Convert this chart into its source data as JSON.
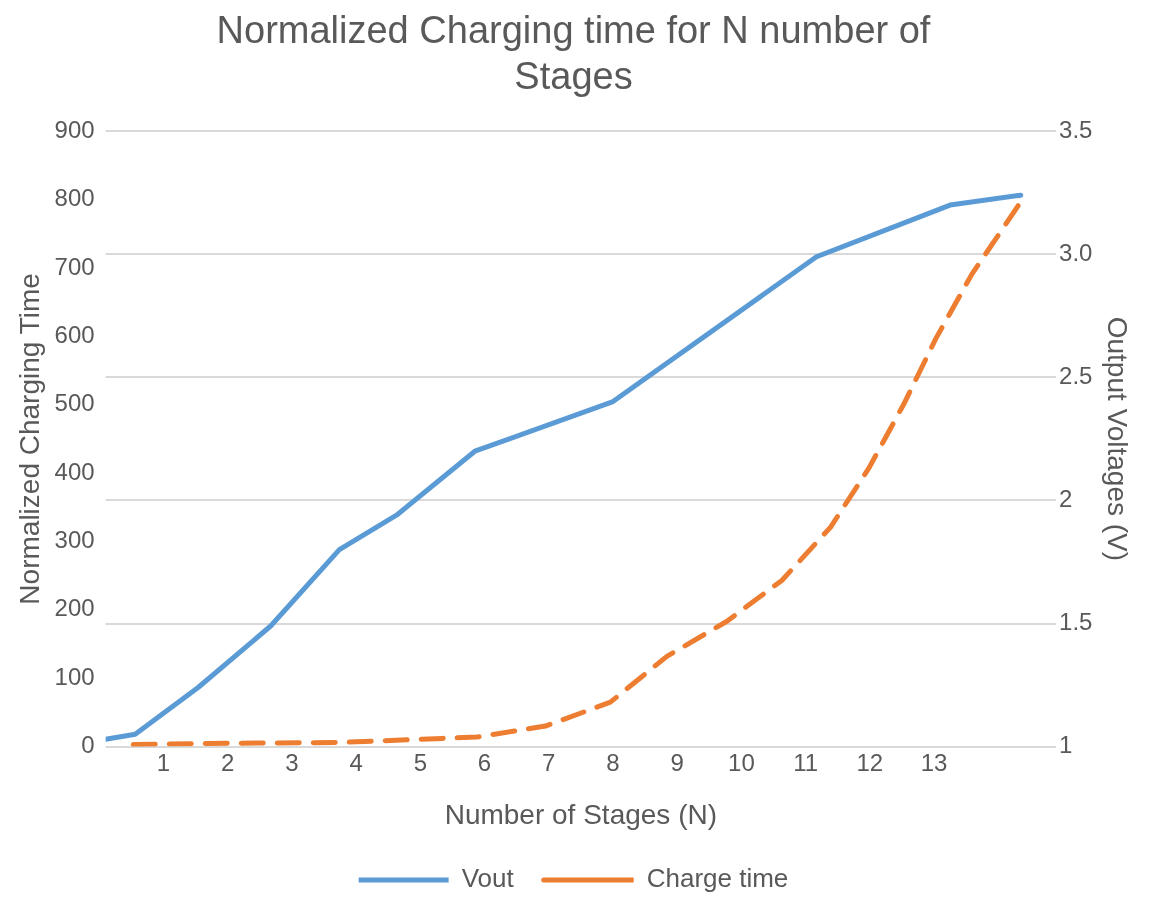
{
  "chart_data": {
    "type": "line",
    "title": "Normalized Charging time for N number of Stages",
    "xlabel": "Number of Stages (N)",
    "ylabel": "Normalized Charging Time",
    "y2label": "Output Voltages (V)",
    "xlim": [
      0.1,
      14.9
    ],
    "xticks": [
      1,
      2,
      3,
      4,
      5,
      6,
      7,
      8,
      9,
      10,
      11,
      12,
      13
    ],
    "ylim": [
      0,
      900
    ],
    "yticks": [
      0,
      100,
      200,
      300,
      400,
      500,
      600,
      700,
      800,
      900
    ],
    "y2lim": [
      1,
      3.5
    ],
    "y2ticks": [
      1,
      {
        "value": 1.5,
        "label": "1.5"
      },
      2,
      {
        "value": 2.5,
        "label": "2.5"
      },
      {
        "value": 3,
        "label": "3.0"
      },
      {
        "value": 3.5,
        "label": "3.5"
      }
    ],
    "grid": "y",
    "legend": "bottom",
    "marker": "none",
    "series": [
      {
        "name": "Vout",
        "color": "#5b9bd5",
        "axis": "y2",
        "line_style": "solid",
        "x": [
          0.1,
          0.56,
          1.54,
          2.67,
          3.74,
          4.63,
          5.85,
          7.99,
          11.17,
          13.25,
          14.35
        ],
        "values": [
          1.03,
          1.05,
          1.24,
          1.49,
          1.8,
          1.94,
          2.2,
          2.4,
          2.99,
          3.2,
          3.24
        ]
      },
      {
        "name": "Charge time",
        "color": "#ed7d31",
        "axis": "y",
        "line_style": "dashed",
        "x": [
          0.53,
          2.1,
          3.74,
          5.34,
          5.88,
          6.95,
          7.96,
          8.84,
          9.77,
          10.63,
          11.39,
          11.99,
          12.53,
          13.03,
          13.59,
          14.39
        ],
        "values": [
          3,
          5,
          6,
          12,
          14,
          30,
          65,
          132,
          183,
          243,
          321,
          408,
          501,
          597,
          691,
          802
        ]
      }
    ]
  }
}
